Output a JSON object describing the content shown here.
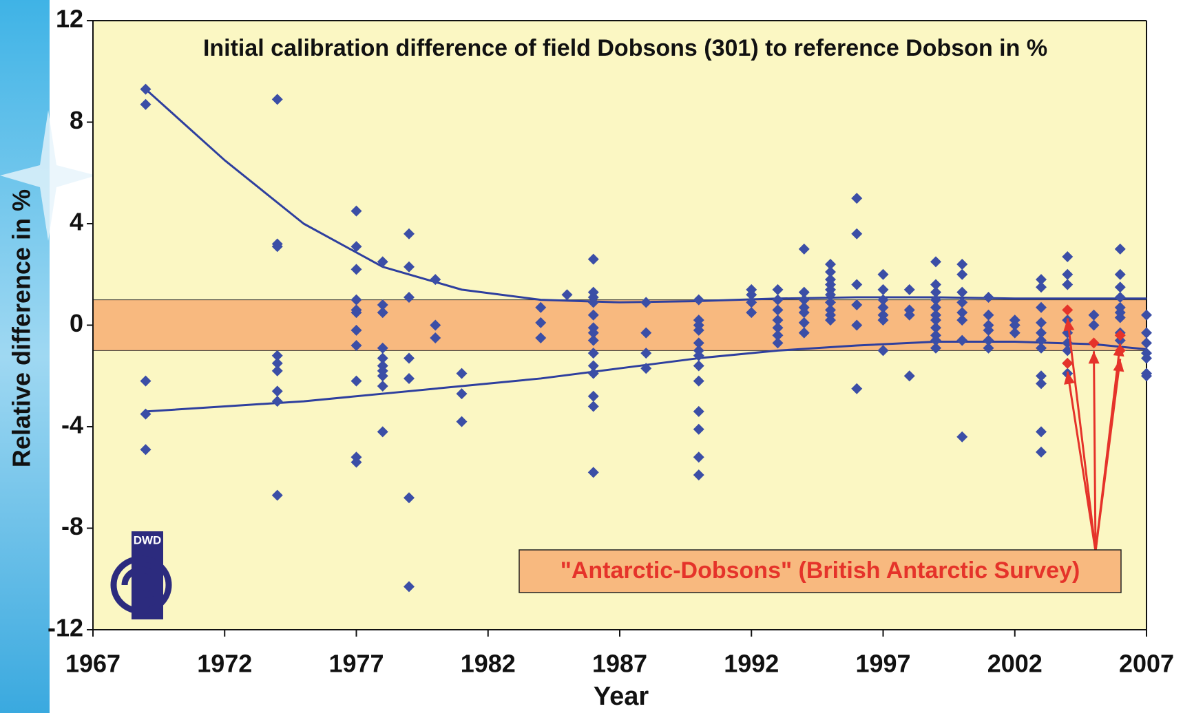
{
  "chart_data": {
    "type": "scatter",
    "title": "Initial calibration difference of field Dobsons (301) to reference Dobson in %",
    "x_label": "Year",
    "y_label": "Relative difference in %",
    "xlim": [
      1967,
      2007
    ],
    "xticks": [
      1967,
      1972,
      1977,
      1982,
      1987,
      1992,
      1997,
      2002,
      2007
    ],
    "ylim": [
      -12,
      12
    ],
    "yticks": [
      -12,
      -8,
      -4,
      0,
      4,
      8,
      12
    ],
    "band": [
      -1,
      1
    ],
    "band_color": "#f8b97f",
    "plot_background": "#fbf7c3",
    "annotation": "\"Antarctic-Dobsons\" (British Antarctic Survey)",
    "logo_text": "DWD",
    "series": [
      {
        "type": "scatter",
        "color": "#3b4ea6",
        "x": [
          1969,
          1969,
          1969,
          1969,
          1969,
          1974,
          1974,
          1974,
          1974,
          1974,
          1974,
          1974,
          1974,
          1974,
          1977,
          1977,
          1977,
          1977,
          1977,
          1977,
          1977,
          1977,
          1977,
          1977,
          1977,
          1978,
          1978,
          1978,
          1978,
          1978,
          1978,
          1978,
          1978,
          1978,
          1978,
          1979,
          1979,
          1979,
          1979,
          1979,
          1979,
          1979,
          1980,
          1980,
          1980,
          1981,
          1981,
          1981,
          1984,
          1984,
          1984,
          1985,
          1986,
          1986,
          1986,
          1986,
          1986,
          1986,
          1986,
          1986,
          1986,
          1986,
          1986,
          1986,
          1986,
          1986,
          1988,
          1988,
          1988,
          1988,
          1990,
          1990,
          1990,
          1990,
          1990,
          1990,
          1990,
          1990,
          1990,
          1990,
          1990,
          1990,
          1990,
          1992,
          1992,
          1992,
          1992,
          1993,
          1993,
          1993,
          1993,
          1993,
          1993,
          1993,
          1994,
          1994,
          1994,
          1994,
          1994,
          1994,
          1994,
          1995,
          1995,
          1995,
          1995,
          1995,
          1995,
          1995,
          1995,
          1995,
          1995,
          1996,
          1996,
          1996,
          1996,
          1996,
          1996,
          1997,
          1997,
          1997,
          1997,
          1997,
          1997,
          1997,
          1998,
          1998,
          1998,
          1998,
          1999,
          1999,
          1999,
          1999,
          1999,
          1999,
          1999,
          1999,
          1999,
          1999,
          1999,
          2000,
          2000,
          2000,
          2000,
          2000,
          2000,
          2000,
          2000,
          2001,
          2001,
          2001,
          2001,
          2001,
          2001,
          2002,
          2002,
          2002,
          2003,
          2003,
          2003,
          2003,
          2003,
          2003,
          2003,
          2003,
          2003,
          2003,
          2003,
          2004,
          2004,
          2004,
          2004,
          2004,
          2004,
          2004,
          2004,
          2004,
          2005,
          2005,
          2006,
          2006,
          2006,
          2006,
          2006,
          2006,
          2006,
          2006,
          2006,
          2007,
          2007,
          2007,
          2007,
          2007,
          2007,
          2007
        ],
        "values": [
          9.3,
          8.7,
          -2.2,
          -3.5,
          -4.9,
          8.9,
          3.2,
          3.1,
          -1.2,
          -1.5,
          -1.8,
          -2.6,
          -3.0,
          -6.7,
          4.5,
          3.1,
          2.2,
          1.0,
          0.6,
          0.5,
          -0.2,
          -0.8,
          -2.2,
          -5.2,
          -5.4,
          2.5,
          0.8,
          0.5,
          -0.9,
          -1.3,
          -1.6,
          -1.8,
          -2.0,
          -2.4,
          -4.2,
          3.6,
          2.3,
          1.1,
          -1.3,
          -2.1,
          -6.8,
          -10.3,
          1.8,
          0.0,
          -0.5,
          -1.9,
          -2.7,
          -3.8,
          0.7,
          0.1,
          -0.5,
          1.2,
          2.6,
          1.3,
          1.1,
          0.9,
          0.4,
          -0.1,
          -0.3,
          -0.6,
          -1.1,
          -1.6,
          -1.9,
          -2.8,
          -3.2,
          -5.8,
          0.9,
          -0.3,
          -1.1,
          -1.7,
          1.0,
          0.2,
          0.0,
          -0.2,
          -0.7,
          -1.0,
          -1.2,
          -1.6,
          -2.2,
          -3.4,
          -4.1,
          -5.2,
          -5.9,
          1.4,
          1.2,
          0.9,
          0.5,
          1.4,
          1.0,
          0.6,
          0.2,
          -0.1,
          -0.4,
          -0.7,
          3.0,
          1.3,
          1.0,
          0.7,
          0.5,
          0.1,
          -0.3,
          2.4,
          2.1,
          1.8,
          1.6,
          1.4,
          1.2,
          0.9,
          0.6,
          0.4,
          0.2,
          5.0,
          3.6,
          1.6,
          0.8,
          0.0,
          -2.5,
          2.0,
          1.4,
          1.0,
          0.7,
          0.4,
          0.2,
          -1.0,
          1.4,
          0.6,
          0.4,
          -2.0,
          2.5,
          1.6,
          1.3,
          1.0,
          0.7,
          0.4,
          0.2,
          -0.1,
          -0.4,
          -0.6,
          -0.9,
          2.4,
          2.0,
          1.3,
          0.9,
          0.5,
          0.2,
          -0.6,
          -4.4,
          1.1,
          0.4,
          0.0,
          -0.2,
          -0.6,
          -0.9,
          0.2,
          0.0,
          -0.3,
          1.8,
          1.5,
          0.7,
          0.1,
          -0.3,
          -0.6,
          -0.9,
          -2.0,
          -2.3,
          -4.2,
          -5.0,
          2.7,
          2.0,
          1.6,
          0.2,
          -0.3,
          -0.7,
          -1.0,
          -1.5,
          -1.9,
          0.4,
          0.0,
          3.0,
          2.0,
          1.5,
          1.1,
          0.7,
          0.5,
          0.3,
          -0.3,
          -0.6,
          0.4,
          -0.3,
          -0.7,
          -1.1,
          -1.3,
          -1.9,
          -2.0
        ]
      },
      {
        "type": "scatter",
        "color": "#e5332a",
        "arrows": true,
        "x": [
          2004,
          2004,
          2005,
          2006,
          2006
        ],
        "values": [
          0.6,
          -1.5,
          -0.7,
          -0.4,
          -1.0
        ]
      },
      {
        "type": "line",
        "color": "#2e3f9e",
        "x": [
          1969,
          1972,
          1975,
          1978,
          1981,
          1984,
          1987,
          1990,
          1993,
          1996,
          1999,
          2002,
          2005,
          2007
        ],
        "values": [
          9.3,
          6.5,
          4.0,
          2.3,
          1.4,
          1.0,
          0.9,
          0.95,
          1.05,
          1.1,
          1.1,
          1.05,
          1.05,
          1.05
        ]
      },
      {
        "type": "line",
        "color": "#2e3f9e",
        "x": [
          1969,
          1972,
          1975,
          1978,
          1981,
          1984,
          1987,
          1990,
          1993,
          1996,
          1999,
          2002,
          2005,
          2007
        ],
        "values": [
          -3.4,
          -3.2,
          -3.0,
          -2.7,
          -2.4,
          -2.1,
          -1.7,
          -1.3,
          -1.0,
          -0.8,
          -0.65,
          -0.65,
          -0.75,
          -0.95
        ]
      }
    ]
  }
}
